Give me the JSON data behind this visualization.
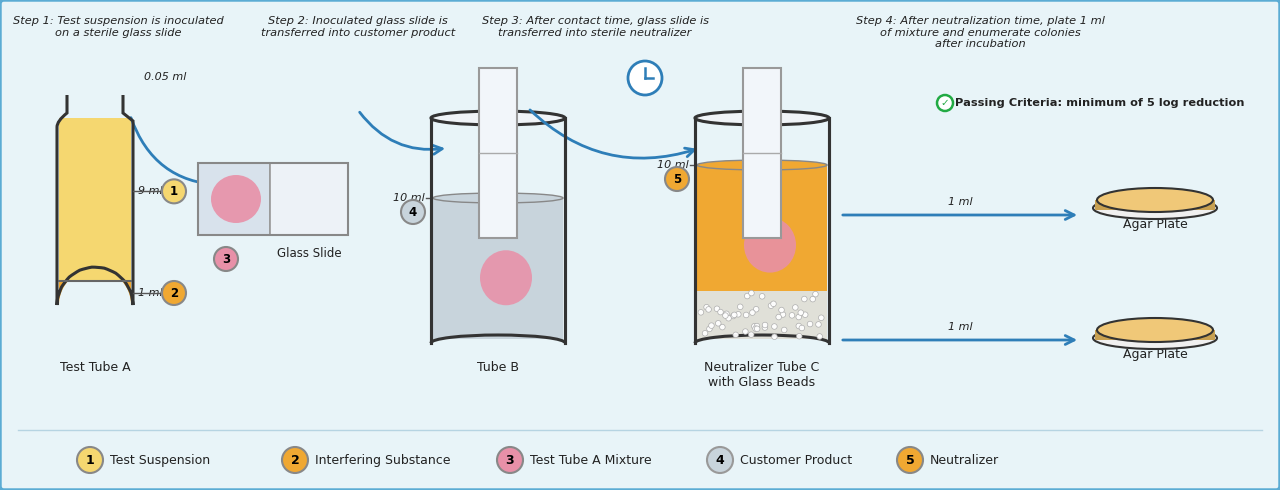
{
  "bg_color": "#e8f4f8",
  "border_color": "#5bacd4",
  "step1_title": "Step 1: Test suspension is inoculated\non a sterile glass slide",
  "step2_title": "Step 2: Inoculated glass slide is\ntransferred into customer product",
  "step3_title": "Step 3: After contact time, glass slide is\ntransferred into sterile neutralizer",
  "step4_title": "Step 4: After neutralization time, plate 1 ml\nof mixture and enumerate colonies\nafter incubation",
  "passing_criteria": "Passing Criteria: minimum of 5 log reduction",
  "arrow_color": "#2e7eb8",
  "tube_fill_yellow": "#f5d770",
  "tube_fill_orange": "#f0a832",
  "neutralizer_orange": "#f0a832",
  "liquid_gray": "#c8d4dc",
  "pink_blob": "#e890a8",
  "agar_fill": "#f0c878",
  "agar_side": "#c8a050",
  "label1_color": "#f5d770",
  "label2_color": "#f0a832",
  "label3_color": "#e890a8",
  "label4_color": "#c8d4dc",
  "label5_color": "#f0a832",
  "legend_labels": [
    "Test Suspension",
    "Interfering Substance",
    "Test Tube A Mixture",
    "Customer Product",
    "Neutralizer"
  ],
  "legend_colors": [
    "#f5d770",
    "#f0a832",
    "#e890a8",
    "#c8d4dc",
    "#f0a832"
  ],
  "legend_numbers": [
    "1",
    "2",
    "3",
    "4",
    "5"
  ],
  "green_check_color": "#22aa44",
  "line_color": "#333333",
  "text_color": "#222222"
}
